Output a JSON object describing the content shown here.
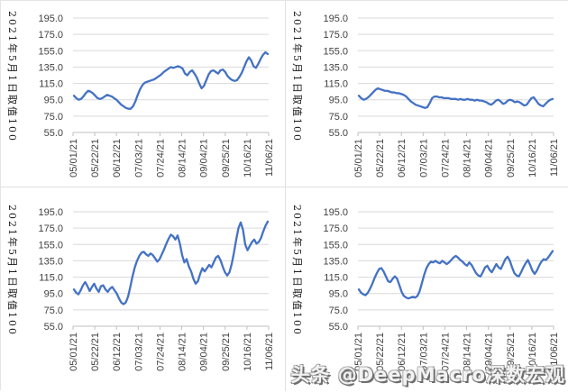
{
  "page": {
    "background": "#ffffff",
    "grid_color": "#d9d9d9",
    "axis_color": "#bfbfbf",
    "tick_label_color": "#404040"
  },
  "watermark": {
    "text": "头条 @DeepMacro深数宏观"
  },
  "chart_data": [
    {
      "type": "line",
      "position": "top-left",
      "y_axis_title": "2021年5月1日取值100",
      "x_tick_labels": [
        "05/01/21",
        "05/22/21",
        "06/12/21",
        "07/03/21",
        "07/24/21",
        "08/14/21",
        "09/04/21",
        "09/25/21",
        "10/16/21",
        "11/06/21"
      ],
      "y_tick_labels": [
        "195.0",
        "175.0",
        "155.0",
        "135.0",
        "115.0",
        "95.0",
        "75.0",
        "55.0"
      ],
      "ylim": [
        55,
        195
      ],
      "ytick_interval": 20,
      "grid": true,
      "legend": false,
      "line_color": "#4472C4",
      "values": [
        100,
        97,
        95,
        96,
        99,
        103,
        106,
        105,
        103,
        100,
        97,
        96,
        97,
        99,
        101,
        100,
        99,
        97,
        95,
        92,
        89,
        87,
        85,
        84,
        84,
        87,
        93,
        101,
        108,
        113,
        116,
        117,
        118,
        119,
        120,
        122,
        124,
        126,
        129,
        131,
        133,
        135,
        134,
        135,
        136,
        135,
        133,
        127,
        125,
        129,
        131,
        127,
        122,
        115,
        109,
        112,
        119,
        126,
        130,
        131,
        129,
        127,
        131,
        132,
        129,
        124,
        121,
        119,
        118,
        119,
        123,
        128,
        135,
        142,
        147,
        143,
        136,
        134,
        139,
        145,
        150,
        153,
        151
      ]
    },
    {
      "type": "line",
      "position": "top-right",
      "y_axis_title": "2021年5月1日取值100",
      "x_tick_labels": [
        "05/01/21",
        "05/22/21",
        "06/12/21",
        "07/03/21",
        "07/24/21",
        "08/14/21",
        "09/04/21",
        "09/25/21",
        "10/16/21",
        "11/06/21"
      ],
      "y_tick_labels": [
        "195.0",
        "175.0",
        "155.0",
        "135.0",
        "115.0",
        "95.0",
        "75.0",
        "55.0"
      ],
      "ylim": [
        55,
        195
      ],
      "ytick_interval": 20,
      "grid": true,
      "legend": false,
      "line_color": "#4472C4",
      "values": [
        100,
        97,
        95,
        96,
        98,
        101,
        104,
        107,
        109,
        108,
        107,
        106,
        106,
        105,
        104,
        104,
        103,
        103,
        102,
        101,
        99,
        96,
        93,
        91,
        89,
        88,
        87,
        86,
        85,
        86,
        91,
        97,
        99,
        99,
        98,
        98,
        97,
        97,
        97,
        96,
        96,
        96,
        95,
        96,
        95,
        95,
        96,
        95,
        95,
        94,
        95,
        94,
        94,
        93,
        92,
        90,
        89,
        91,
        94,
        95,
        93,
        90,
        91,
        94,
        95,
        94,
        92,
        93,
        92,
        90,
        88,
        89,
        93,
        97,
        98,
        94,
        90,
        88,
        87,
        90,
        93,
        95,
        96
      ]
    },
    {
      "type": "line",
      "position": "bottom-left",
      "y_axis_title": "2021年5月1日取值100",
      "x_tick_labels": [
        "05/01/21",
        "05/22/21",
        "06/12/21",
        "07/03/21",
        "07/24/21",
        "08/14/21",
        "09/04/21",
        "09/25/21",
        "10/16/21",
        "11/06/21"
      ],
      "y_tick_labels": [
        "195.0",
        "175.0",
        "155.0",
        "135.0",
        "115.0",
        "95.0",
        "75.0",
        "55.0"
      ],
      "ylim": [
        55,
        195
      ],
      "ytick_interval": 20,
      "grid": true,
      "legend": false,
      "line_color": "#4472C4",
      "values": [
        100,
        96,
        94,
        99,
        105,
        109,
        104,
        98,
        103,
        107,
        101,
        97,
        104,
        105,
        100,
        97,
        101,
        103,
        99,
        95,
        89,
        84,
        82,
        84,
        91,
        103,
        116,
        127,
        135,
        141,
        145,
        146,
        143,
        141,
        144,
        142,
        138,
        134,
        137,
        143,
        149,
        156,
        162,
        167,
        165,
        161,
        166,
        156,
        142,
        133,
        137,
        128,
        122,
        113,
        107,
        110,
        119,
        126,
        122,
        126,
        130,
        127,
        133,
        139,
        141,
        136,
        128,
        121,
        117,
        121,
        131,
        145,
        161,
        175,
        182,
        173,
        155,
        148,
        153,
        158,
        161,
        156,
        158,
        163,
        171,
        178,
        183
      ]
    },
    {
      "type": "line",
      "position": "bottom-right",
      "y_axis_title": "2021年5月1日取值100",
      "x_tick_labels": [
        "05/01/21",
        "05/22/21",
        "06/12/21",
        "07/03/21",
        "07/24/21",
        "08/14/21",
        "09/04/21",
        "09/25/21",
        "10/16/21",
        "11/06/21"
      ],
      "y_tick_labels": [
        "195.0",
        "175.0",
        "155.0",
        "135.0",
        "115.0",
        "95.0",
        "75.0",
        "55.0"
      ],
      "ylim": [
        55,
        195
      ],
      "ytick_interval": 20,
      "grid": true,
      "legend": false,
      "line_color": "#4472C4",
      "values": [
        100,
        96,
        94,
        93,
        96,
        101,
        107,
        114,
        120,
        125,
        126,
        122,
        116,
        110,
        109,
        113,
        116,
        113,
        105,
        97,
        92,
        90,
        89,
        90,
        91,
        90,
        92,
        98,
        108,
        118,
        126,
        131,
        134,
        133,
        135,
        133,
        132,
        135,
        133,
        131,
        133,
        136,
        139,
        141,
        139,
        136,
        134,
        131,
        129,
        133,
        130,
        125,
        120,
        117,
        116,
        121,
        127,
        129,
        124,
        121,
        126,
        131,
        127,
        125,
        131,
        137,
        140,
        135,
        127,
        120,
        117,
        116,
        121,
        127,
        132,
        136,
        130,
        123,
        119,
        123,
        129,
        134,
        137,
        136,
        139,
        143,
        147
      ]
    }
  ]
}
